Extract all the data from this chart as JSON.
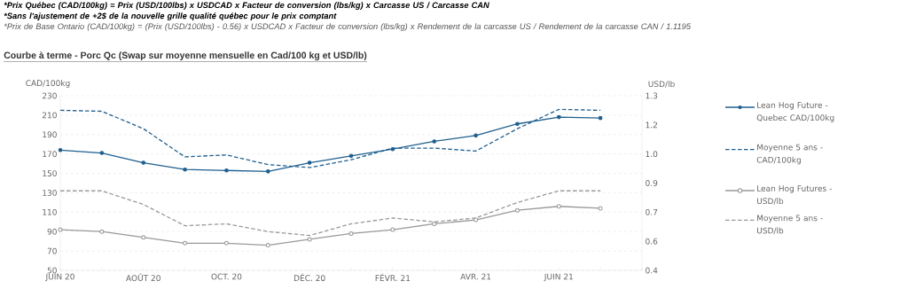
{
  "chart_data": {
    "type": "line",
    "title": "Courbe à terme - Porc Qc (Swap sur moyenne mensuelle en Cad/100 kg et USD/lb)",
    "annotations": [
      "*Prix Québec (CAD/100kg) = Prix (USD/100lbs) x USDCAD x Facteur de conversion (lbs/kg) x Carcasse US / Carcasse CAN",
      "*Sans l'ajustement de +2$ de la nouvelle grille qualité québec pour le prix comptant",
      "*Prix de Base Ontario (CAD/100kg) = (Prix (USD/100lbs) - 0.56) x USDCAD x Facteur de conversion (lbs/kg) x Rendement de la carcasse US / Rendement de la carcasse CAN / 1.1195"
    ],
    "ylabel": "CAD/100kg",
    "y2label": "USD/lb",
    "categories": [
      "JUIN 20",
      null,
      "AOÛT 20",
      null,
      "OCT. 20",
      null,
      "DÉC. 20",
      null,
      "FÉVR. 21",
      null,
      "AVR. 21",
      null,
      "JUIN 21",
      null,
      null
    ],
    "series": [
      {
        "name": "Lean Hog Future - Quebec CAD/100kg",
        "color": "#1f5f8f",
        "marker": "circle",
        "line_style": "solid",
        "values": [
          174,
          171,
          161,
          154,
          153,
          152,
          161,
          168,
          175,
          183,
          189,
          201,
          208,
          207,
          null
        ]
      },
      {
        "name": "Moyenne 5 ans - CAD/100kg",
        "color": "#1f5f8f",
        "marker": "none",
        "line_style": "dashed",
        "values": [
          215,
          214,
          196,
          167,
          169,
          159,
          156,
          164,
          176,
          176,
          173,
          196,
          216,
          215,
          null
        ]
      },
      {
        "name": "Lean Hog Futures - USD/lb",
        "color": "#999999",
        "marker": "circle",
        "line_style": "solid",
        "axis": "y2",
        "values": [
          0.61,
          0.6,
          0.57,
          0.54,
          0.54,
          0.53,
          0.56,
          0.59,
          0.61,
          0.64,
          0.66,
          0.71,
          0.73,
          0.72,
          null
        ]
      },
      {
        "name": "Moyenne 5 ans - USD/lb",
        "color": "#999999",
        "marker": "none",
        "line_style": "dashed",
        "axis": "y2",
        "values": [
          0.81,
          0.81,
          0.74,
          0.63,
          0.64,
          0.6,
          0.58,
          0.64,
          0.67,
          0.65,
          0.67,
          0.75,
          0.81,
          0.81,
          null
        ]
      }
    ],
    "ylim": [
      50,
      230
    ],
    "yticks": [
      50,
      70,
      90,
      110,
      130,
      150,
      170,
      190,
      210,
      230
    ],
    "y2lim": [
      0.4,
      1.3
    ],
    "y2ticks": [
      0.4,
      {
        "value": 0.55,
        "label": "0.6"
      },
      0.7,
      {
        "value": 0.85,
        "label": "0.9"
      },
      {
        "value": 1.0,
        "label": "1.0"
      },
      {
        "value": 1.15,
        "label": "1.2"
      },
      1.3
    ],
    "grid": "y",
    "legend": "right"
  }
}
